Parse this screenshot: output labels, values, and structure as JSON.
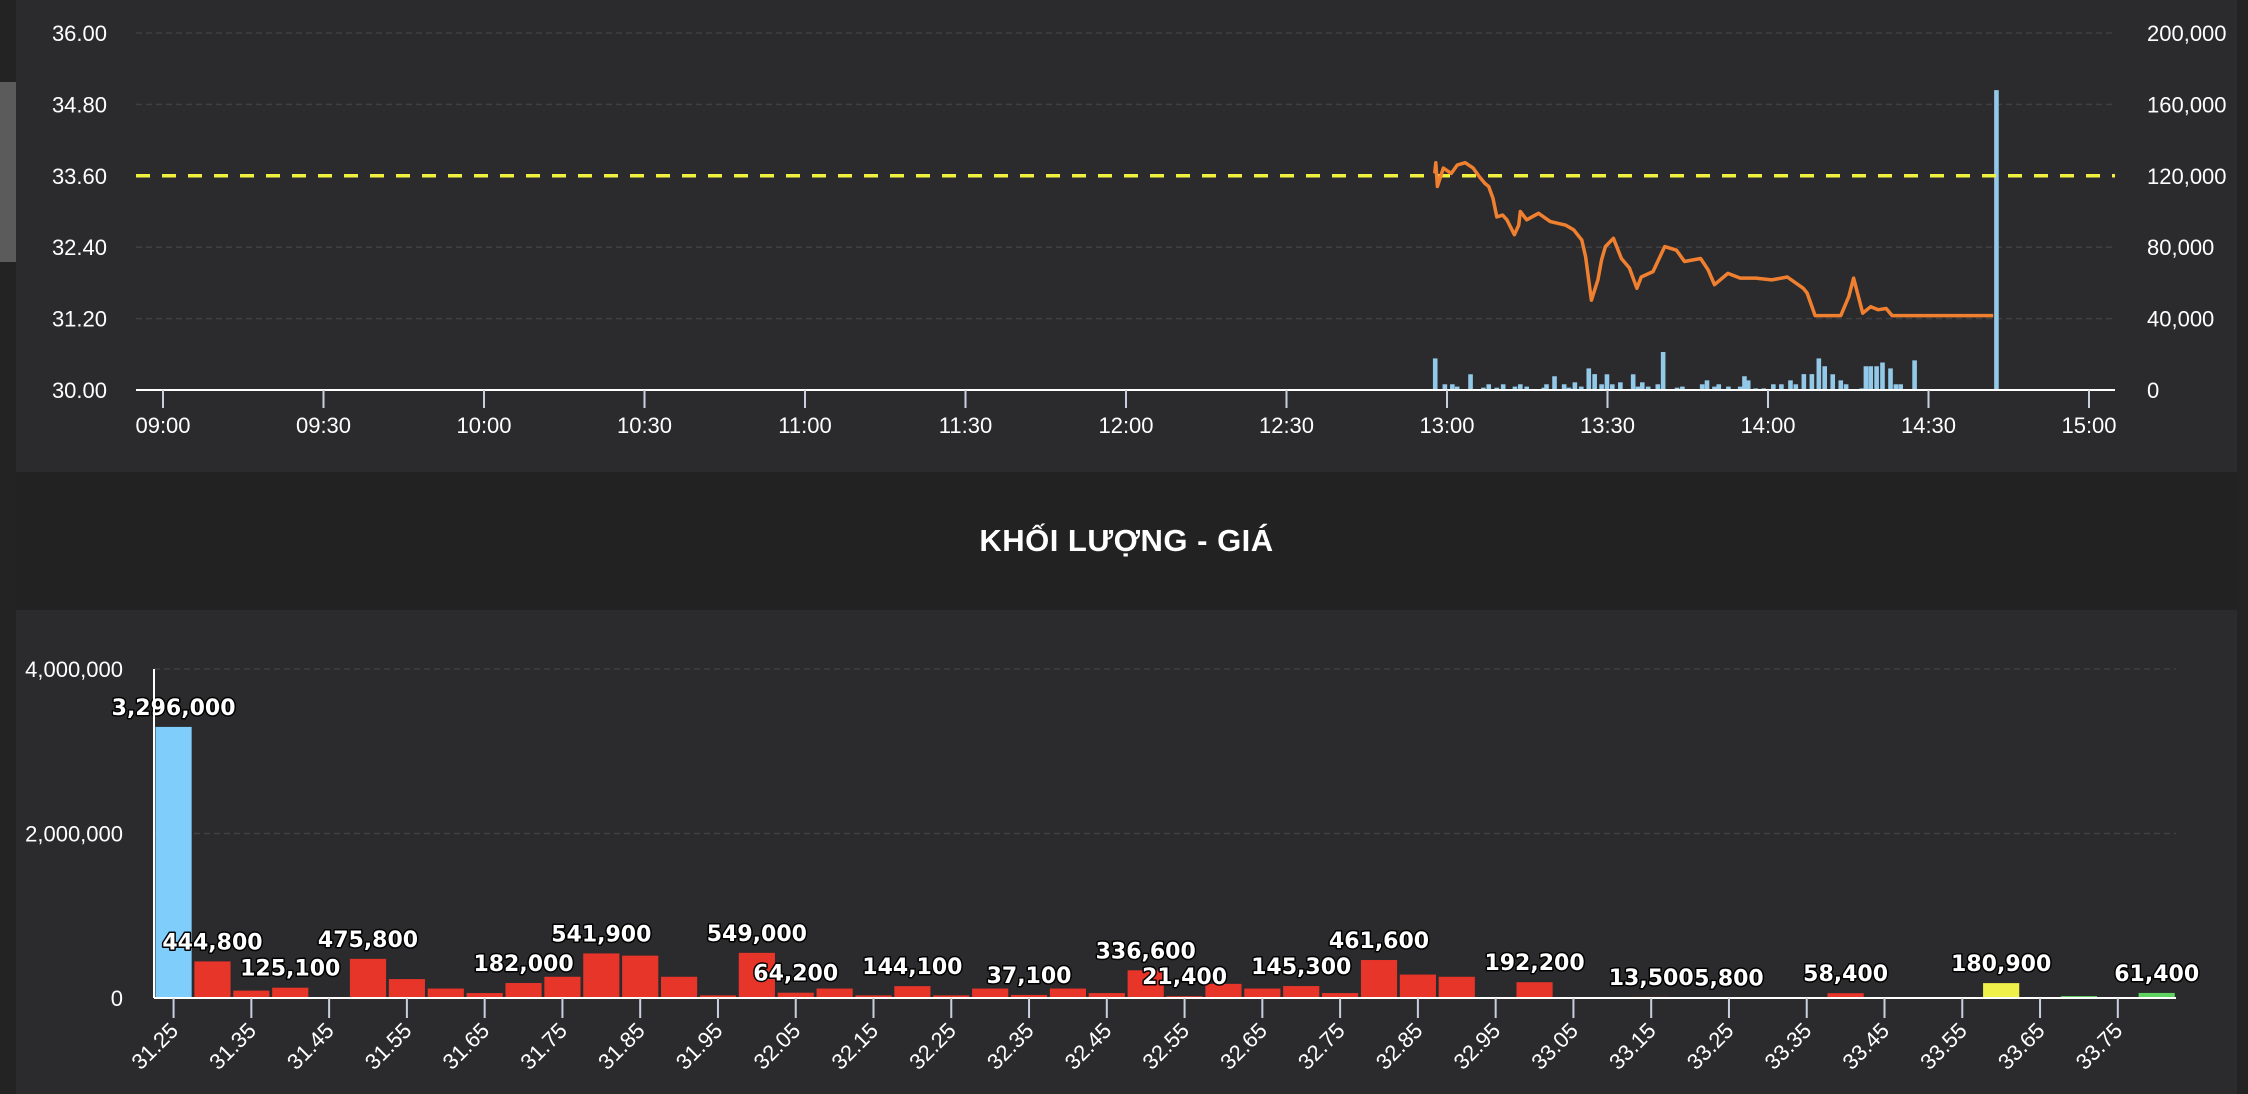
{
  "title": "KHỐI LƯỢNG - GIÁ",
  "colors": {
    "price_line": "#f08030",
    "reference": "#f0f040",
    "volume": "#93c9e8",
    "floor": "#7fcdfb",
    "down": "#e8352a",
    "ref_bar": "#f0f04a",
    "up": "#5fd35f"
  },
  "chart_data": [
    {
      "type": "line",
      "title": "Intraday price & volume",
      "x_unit": "minutes since 09:00",
      "xlim": [
        0,
        360
      ],
      "x_ticks": [
        "09:00",
        "09:30",
        "10:00",
        "10:30",
        "11:00",
        "11:30",
        "12:00",
        "12:30",
        "13:00",
        "13:30",
        "14:00",
        "14:30",
        "15:00"
      ],
      "y_left": {
        "ylim": [
          30,
          36
        ],
        "ticks": [
          "36.00",
          "34.80",
          "33.60",
          "32.40",
          "31.20",
          "30.00"
        ],
        "values": [
          36,
          34.8,
          33.6,
          32.4,
          31.2,
          30
        ]
      },
      "y_right": {
        "ylim": [
          0,
          200000
        ],
        "ticks": [
          "200,000",
          "160,000",
          "120,000",
          "80,000",
          "40,000",
          "0"
        ],
        "values": [
          200000,
          160000,
          120000,
          80000,
          40000,
          0
        ]
      },
      "reference_price": 33.6,
      "grid": true,
      "price_series": [
        [
          237.7,
          33.64
        ],
        [
          237.9,
          33.82
        ],
        [
          238.2,
          33.42
        ],
        [
          239.3,
          33.73
        ],
        [
          240.8,
          33.64
        ],
        [
          241.9,
          33.78
        ],
        [
          243.4,
          33.82
        ],
        [
          244.9,
          33.73
        ],
        [
          246.0,
          33.59
        ],
        [
          247.1,
          33.47
        ],
        [
          247.8,
          33.42
        ],
        [
          248.6,
          33.22
        ],
        [
          249.3,
          32.91
        ],
        [
          250.4,
          32.94
        ],
        [
          251.2,
          32.86
        ],
        [
          252.6,
          32.61
        ],
        [
          253.4,
          32.77
        ],
        [
          253.7,
          33.0
        ],
        [
          254.9,
          32.86
        ],
        [
          257.1,
          32.97
        ],
        [
          259.3,
          32.83
        ],
        [
          262.2,
          32.77
        ],
        [
          263.7,
          32.69
        ],
        [
          265.2,
          32.52
        ],
        [
          265.9,
          32.24
        ],
        [
          267.0,
          31.51
        ],
        [
          268.2,
          31.85
        ],
        [
          268.9,
          32.19
        ],
        [
          269.6,
          32.41
        ],
        [
          271.1,
          32.55
        ],
        [
          272.6,
          32.21
        ],
        [
          274.1,
          32.05
        ],
        [
          275.5,
          31.71
        ],
        [
          276.3,
          31.9
        ],
        [
          278.5,
          31.99
        ],
        [
          280.7,
          32.41
        ],
        [
          282.9,
          32.35
        ],
        [
          284.4,
          32.16
        ],
        [
          287.4,
          32.21
        ],
        [
          288.8,
          32.02
        ],
        [
          290.0,
          31.77
        ],
        [
          292.5,
          31.96
        ],
        [
          294.8,
          31.88
        ],
        [
          297.7,
          31.88
        ],
        [
          300.7,
          31.85
        ],
        [
          303.6,
          31.9
        ],
        [
          306.6,
          31.71
        ],
        [
          307.3,
          31.63
        ],
        [
          308.8,
          31.25
        ],
        [
          313.6,
          31.25
        ],
        [
          315.1,
          31.57
        ],
        [
          316.0,
          31.88
        ],
        [
          316.9,
          31.57
        ],
        [
          317.7,
          31.29
        ],
        [
          319.2,
          31.4
        ],
        [
          320.6,
          31.35
        ],
        [
          322.1,
          31.37
        ],
        [
          323.2,
          31.25
        ],
        [
          342.1,
          31.25
        ]
      ],
      "volume_series": [
        [
          237.8,
          17700
        ],
        [
          239.6,
          3200
        ],
        [
          241.0,
          3200
        ],
        [
          241.9,
          1900
        ],
        [
          244.4,
          8800
        ],
        [
          246.8,
          1300
        ],
        [
          247.8,
          3200
        ],
        [
          249.3,
          1300
        ],
        [
          250.5,
          3200
        ],
        [
          252.7,
          1900
        ],
        [
          253.7,
          3200
        ],
        [
          254.9,
          1900
        ],
        [
          258.1,
          1300
        ],
        [
          258.6,
          3200
        ],
        [
          260.1,
          7700
        ],
        [
          261.9,
          3200
        ],
        [
          262.8,
          1300
        ],
        [
          263.9,
          4300
        ],
        [
          265.1,
          1900
        ],
        [
          266.5,
          12100
        ],
        [
          267.6,
          8900
        ],
        [
          268.9,
          3200
        ],
        [
          269.9,
          8800
        ],
        [
          270.9,
          3200
        ],
        [
          272.4,
          4300
        ],
        [
          274.8,
          8800
        ],
        [
          275.7,
          1900
        ],
        [
          276.5,
          4300
        ],
        [
          277.6,
          1900
        ],
        [
          279.4,
          3200
        ],
        [
          280.4,
          21300
        ],
        [
          283.0,
          1300
        ],
        [
          284.0,
          1900
        ],
        [
          287.7,
          3200
        ],
        [
          288.6,
          5400
        ],
        [
          290.0,
          1900
        ],
        [
          290.8,
          3200
        ],
        [
          292.6,
          1900
        ],
        [
          294.8,
          1900
        ],
        [
          295.6,
          7700
        ],
        [
          296.3,
          5400
        ],
        [
          297.7,
          900
        ],
        [
          299.2,
          900
        ],
        [
          301.0,
          3200
        ],
        [
          302.5,
          3200
        ],
        [
          304.2,
          5400
        ],
        [
          305.2,
          3200
        ],
        [
          306.7,
          8900
        ],
        [
          308.2,
          8900
        ],
        [
          309.5,
          17700
        ],
        [
          310.6,
          13300
        ],
        [
          312.1,
          8800
        ],
        [
          313.6,
          5400
        ],
        [
          314.6,
          3200
        ],
        [
          317.5,
          900
        ],
        [
          318.3,
          13300
        ],
        [
          319.2,
          13300
        ],
        [
          320.3,
          13300
        ],
        [
          321.4,
          15400
        ],
        [
          322.9,
          12100
        ],
        [
          323.9,
          3200
        ],
        [
          324.8,
          3200
        ],
        [
          327.4,
          16600
        ],
        [
          342.7,
          168000
        ]
      ]
    },
    {
      "type": "bar",
      "title": "KHỐI LƯỢNG - GIÁ",
      "ylim": [
        0,
        4000000
      ],
      "y_ticks": [
        "4,000,000",
        "2,000,000",
        "0"
      ],
      "y_tick_values": [
        4000000,
        2000000,
        0
      ],
      "grid": true,
      "x_tick_labels": [
        "31.25",
        "31.35",
        "31.45",
        "31.55",
        "31.65",
        "31.75",
        "31.85",
        "31.95",
        "32.05",
        "32.15",
        "32.25",
        "32.35",
        "32.45",
        "32.55",
        "32.65",
        "32.75",
        "32.85",
        "32.95",
        "33.05",
        "33.15",
        "33.25",
        "33.35",
        "33.45",
        "33.55",
        "33.65",
        "33.75"
      ],
      "bars": [
        {
          "price": 31.25,
          "value": 3296000,
          "label": "3,296,000",
          "color": "floor"
        },
        {
          "price": 31.3,
          "value": 444800,
          "label": "444,800",
          "color": "down"
        },
        {
          "price": 31.35,
          "value": 90000,
          "color": "down"
        },
        {
          "price": 31.4,
          "value": 125100,
          "label": "125,100",
          "color": "down"
        },
        {
          "price": 31.45,
          "value": 0,
          "color": "down"
        },
        {
          "price": 31.5,
          "value": 475800,
          "label": "475,800",
          "color": "down"
        },
        {
          "price": 31.55,
          "value": 230000,
          "color": "down"
        },
        {
          "price": 31.6,
          "value": 115000,
          "color": "down"
        },
        {
          "price": 31.65,
          "value": 60000,
          "color": "down"
        },
        {
          "price": 31.7,
          "value": 182000,
          "label": "182,000",
          "color": "down"
        },
        {
          "price": 31.75,
          "value": 258000,
          "color": "down"
        },
        {
          "price": 31.8,
          "value": 541900,
          "label": "541,900",
          "color": "down"
        },
        {
          "price": 31.85,
          "value": 515000,
          "color": "down"
        },
        {
          "price": 31.9,
          "value": 258000,
          "color": "down"
        },
        {
          "price": 31.95,
          "value": 32000,
          "color": "down"
        },
        {
          "price": 32.0,
          "value": 549000,
          "label": "549,000",
          "color": "down"
        },
        {
          "price": 32.05,
          "value": 64200,
          "label": "64,200",
          "color": "down"
        },
        {
          "price": 32.1,
          "value": 115000,
          "color": "down"
        },
        {
          "price": 32.15,
          "value": 32000,
          "color": "down"
        },
        {
          "price": 32.2,
          "value": 144100,
          "label": "144,100",
          "color": "down"
        },
        {
          "price": 32.25,
          "value": 32000,
          "color": "down"
        },
        {
          "price": 32.3,
          "value": 115000,
          "color": "down"
        },
        {
          "price": 32.35,
          "value": 37100,
          "label": "37,100",
          "color": "down"
        },
        {
          "price": 32.4,
          "value": 115000,
          "color": "down"
        },
        {
          "price": 32.45,
          "value": 60000,
          "color": "down"
        },
        {
          "price": 32.5,
          "value": 336600,
          "label": "336,600",
          "color": "down"
        },
        {
          "price": 32.55,
          "value": 21400,
          "label": "21,400",
          "color": "down"
        },
        {
          "price": 32.6,
          "value": 172000,
          "color": "down"
        },
        {
          "price": 32.65,
          "value": 115000,
          "color": "down"
        },
        {
          "price": 32.7,
          "value": 145300,
          "label": "145,300",
          "color": "down"
        },
        {
          "price": 32.75,
          "value": 60000,
          "color": "down"
        },
        {
          "price": 32.8,
          "value": 461600,
          "label": "461,600",
          "color": "down"
        },
        {
          "price": 32.85,
          "value": 285000,
          "color": "down"
        },
        {
          "price": 32.9,
          "value": 258000,
          "color": "down"
        },
        {
          "price": 32.95,
          "value": 0,
          "color": "down"
        },
        {
          "price": 33.0,
          "value": 192200,
          "label": "192,200",
          "color": "down"
        },
        {
          "price": 33.05,
          "value": 0,
          "color": "down"
        },
        {
          "price": 33.1,
          "value": 0,
          "color": "down"
        },
        {
          "price": 33.15,
          "value": 13500,
          "label": "13,500",
          "color": "down"
        },
        {
          "price": 33.2,
          "value": 0,
          "color": "down"
        },
        {
          "price": 33.25,
          "value": 5800,
          "label": "5,800",
          "color": "down"
        },
        {
          "price": 33.3,
          "value": 0,
          "color": "down"
        },
        {
          "price": 33.35,
          "value": 0,
          "color": "down"
        },
        {
          "price": 33.4,
          "value": 58400,
          "label": "58,400",
          "color": "down"
        },
        {
          "price": 33.45,
          "value": 0,
          "color": "down"
        },
        {
          "price": 33.5,
          "value": 0,
          "color": "down"
        },
        {
          "price": 33.55,
          "value": 0,
          "color": "down"
        },
        {
          "price": 33.6,
          "value": 180900,
          "label": "180,900",
          "color": "ref_bar"
        },
        {
          "price": 33.65,
          "value": 0,
          "color": "up"
        },
        {
          "price": 33.7,
          "value": 23000,
          "color": "up"
        },
        {
          "price": 33.75,
          "value": 0,
          "color": "up"
        },
        {
          "price": 33.8,
          "value": 61400,
          "label": "61,400",
          "color": "up"
        }
      ]
    }
  ]
}
